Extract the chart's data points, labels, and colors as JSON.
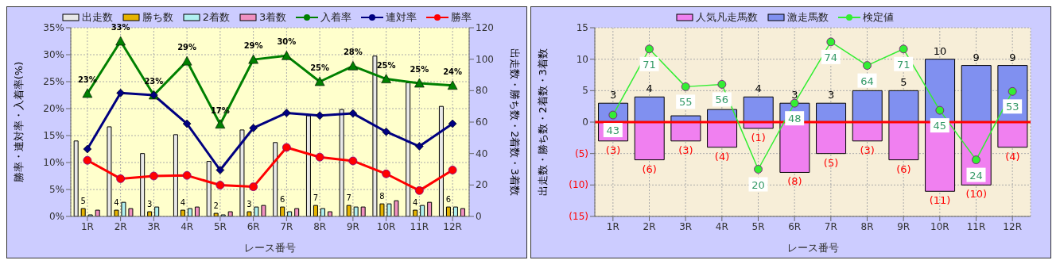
{
  "chart_data": [
    {
      "type": "bar",
      "categories": [
        "1R",
        "2R",
        "3R",
        "4R",
        "5R",
        "6R",
        "7R",
        "8R",
        "9R",
        "10R",
        "11R",
        "12R"
      ],
      "xlabel": "レース番号",
      "ylabel": "勝率・連対率・入着率(%)",
      "y2label": "出走数・勝ち数・2着数・3着数",
      "ylim": [
        0,
        35
      ],
      "yticks": [
        {
          "value": 0,
          "label": "0%"
        },
        {
          "value": 5,
          "label": "5%"
        },
        {
          "value": 10,
          "label": "10%"
        },
        {
          "value": 15,
          "label": "15%"
        },
        {
          "value": 20,
          "label": "20%"
        },
        {
          "value": 25,
          "label": "25%"
        },
        {
          "value": 30,
          "label": "30%"
        },
        {
          "value": 35,
          "label": "35%"
        }
      ],
      "y2lim": [
        0,
        120
      ],
      "y2ticks": [
        0,
        20,
        40,
        60,
        80,
        100,
        120
      ],
      "grid": true,
      "legend": "top",
      "series": [
        {
          "name": "出走数",
          "axis": "y2",
          "color": "#e8e8e8",
          "values": [
            48,
            57,
            40,
            52,
            35,
            55,
            47,
            64,
            68,
            102,
            85,
            70
          ]
        },
        {
          "name": "勝ち数",
          "axis": "y2",
          "color": "#e6b400",
          "values": [
            5,
            4,
            3,
            4,
            2,
            3,
            6,
            7,
            7,
            8,
            4,
            6
          ],
          "value_labels": [
            "5",
            "4",
            "3",
            "4",
            "2",
            "3",
            "6",
            "7",
            "7",
            "8",
            "4",
            "6"
          ]
        },
        {
          "name": "2着数",
          "axis": "y2",
          "color": "#b0f0f0",
          "values": [
            1,
            9,
            6,
            5,
            1,
            6,
            3,
            5,
            6,
            8,
            7,
            6
          ]
        },
        {
          "name": "3着数",
          "axis": "y2",
          "color": "#f090c0",
          "values": [
            4,
            5,
            0,
            6,
            3,
            7,
            5,
            3,
            6,
            10,
            9,
            5
          ]
        },
        {
          "name": "入着率",
          "type": "line",
          "color": "#008000",
          "marker": "triangle",
          "values": [
            22.8,
            32.5,
            22.5,
            28.8,
            17.1,
            29.1,
            29.8,
            25,
            27.9,
            25.5,
            24.7,
            24.3
          ],
          "value_labels": [
            "23%",
            "33%",
            "23%",
            "29%",
            "17%",
            "29%",
            "30%",
            "25%",
            "28%",
            "25%",
            "25%",
            "24%"
          ]
        },
        {
          "name": "連対率",
          "type": "line",
          "color": "#000080",
          "marker": "diamond",
          "values": [
            12.5,
            22.9,
            22.5,
            17.2,
            8.6,
            16.4,
            19.2,
            18.7,
            19.1,
            15.7,
            13.0,
            17.2
          ]
        },
        {
          "name": "勝率",
          "type": "line",
          "color": "#ff0000",
          "marker": "circle",
          "values": [
            10.4,
            7.0,
            7.5,
            7.6,
            5.8,
            5.5,
            12.8,
            11.0,
            10.3,
            7.9,
            4.8,
            8.6
          ]
        }
      ]
    },
    {
      "type": "bar",
      "stacked": true,
      "categories": [
        "1R",
        "2R",
        "3R",
        "4R",
        "5R",
        "6R",
        "7R",
        "8R",
        "9R",
        "10R",
        "11R",
        "12R"
      ],
      "xlabel": "レース番号",
      "ylabel": "出走数・勝ち数・2着数・3着数",
      "ylim": [
        -15,
        15
      ],
      "yticks": [
        {
          "value": -15,
          "label": "(15)"
        },
        {
          "value": -10,
          "label": "(10)"
        },
        {
          "value": -5,
          "label": "(5)"
        },
        0,
        5,
        10,
        15
      ],
      "y2lim": [
        0,
        80
      ],
      "grid": true,
      "legend": "top",
      "ref_lines": [
        {
          "axis": "y",
          "value": 0,
          "color": "#ff0000"
        }
      ],
      "series": [
        {
          "name": "人気凡走馬数",
          "color": "#f080f0",
          "values": [
            -3,
            -6,
            -3,
            -4,
            -1,
            -8,
            -5,
            -3,
            -6,
            -11,
            -10,
            -4
          ],
          "value_labels": [
            "(3)",
            "(6)",
            "(3)",
            "(4)",
            "(1)",
            "(8)",
            "(5)",
            "(3)",
            "(6)",
            "(11)",
            "(10)",
            "(4)"
          ]
        },
        {
          "name": "激走馬数",
          "color": "#8090f0",
          "values": [
            3,
            4,
            1,
            2,
            4,
            3,
            3,
            5,
            5,
            10,
            9,
            9
          ],
          "value_labels": [
            "3",
            "4",
            null,
            null,
            "4",
            "3",
            "3",
            null,
            "5",
            "10",
            "9",
            "9"
          ]
        },
        {
          "name": "検定値",
          "type": "line",
          "axis": "y2",
          "color": "#33ee33",
          "marker": "circle",
          "values": [
            43,
            71,
            55,
            56,
            20,
            48,
            74,
            64,
            71,
            45,
            24,
            53
          ],
          "value_labels": [
            "43",
            "71",
            "55",
            "56",
            "20",
            "48",
            "74",
            "64",
            "71",
            "45",
            "24",
            "53"
          ]
        }
      ]
    }
  ]
}
